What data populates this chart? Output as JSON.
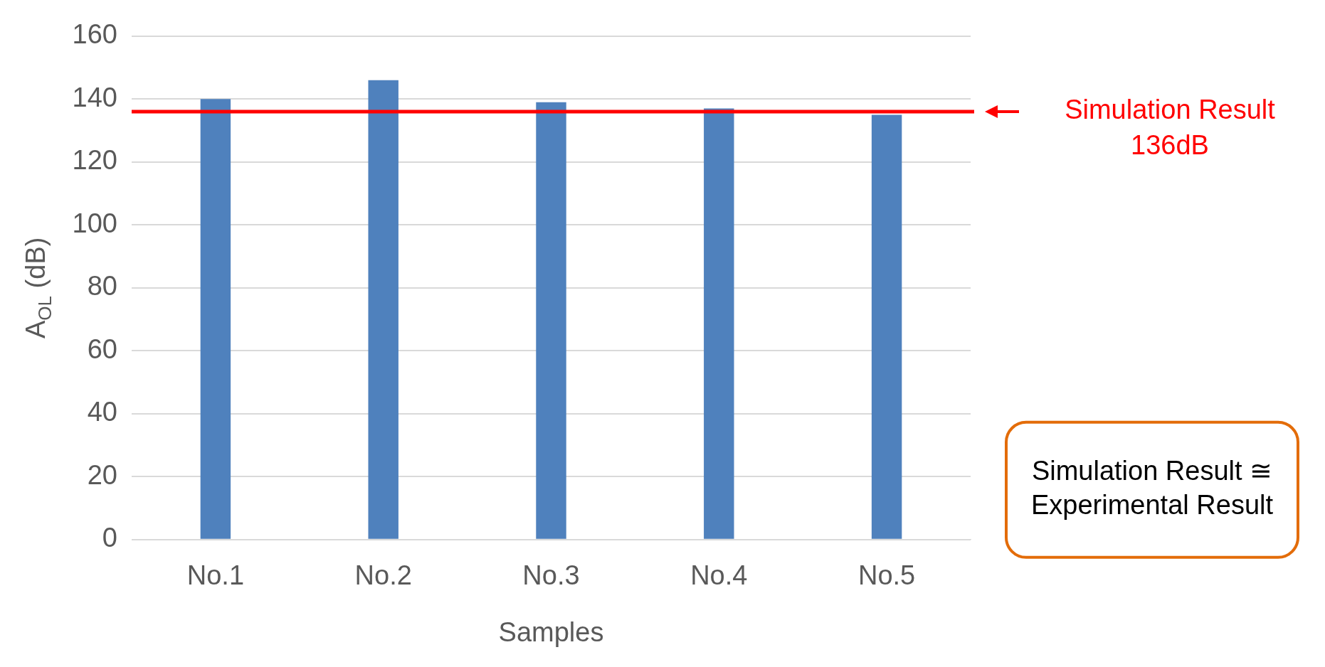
{
  "chart_data": {
    "type": "bar",
    "categories": [
      "No.1",
      "No.2",
      "No.3",
      "No.4",
      "No.5"
    ],
    "series": [
      {
        "color": "#4f81bd",
        "values": [
          140,
          146,
          139,
          137,
          135
        ]
      }
    ],
    "xlabel": "Samples",
    "ylabel": "A$_{OL}$ (dB)",
    "ylim": [
      0,
      160
    ],
    "yticks": [
      0,
      20,
      40,
      60,
      80,
      100,
      120,
      140,
      160
    ],
    "grid": "y",
    "legend": false,
    "ref_lines": [
      {
        "axis": "y",
        "value": 136,
        "label": "Simulation Result\n136dB",
        "color": "#ff0000"
      }
    ],
    "annotations": [
      "Simulation Result ≅\nExperimental Result"
    ]
  }
}
